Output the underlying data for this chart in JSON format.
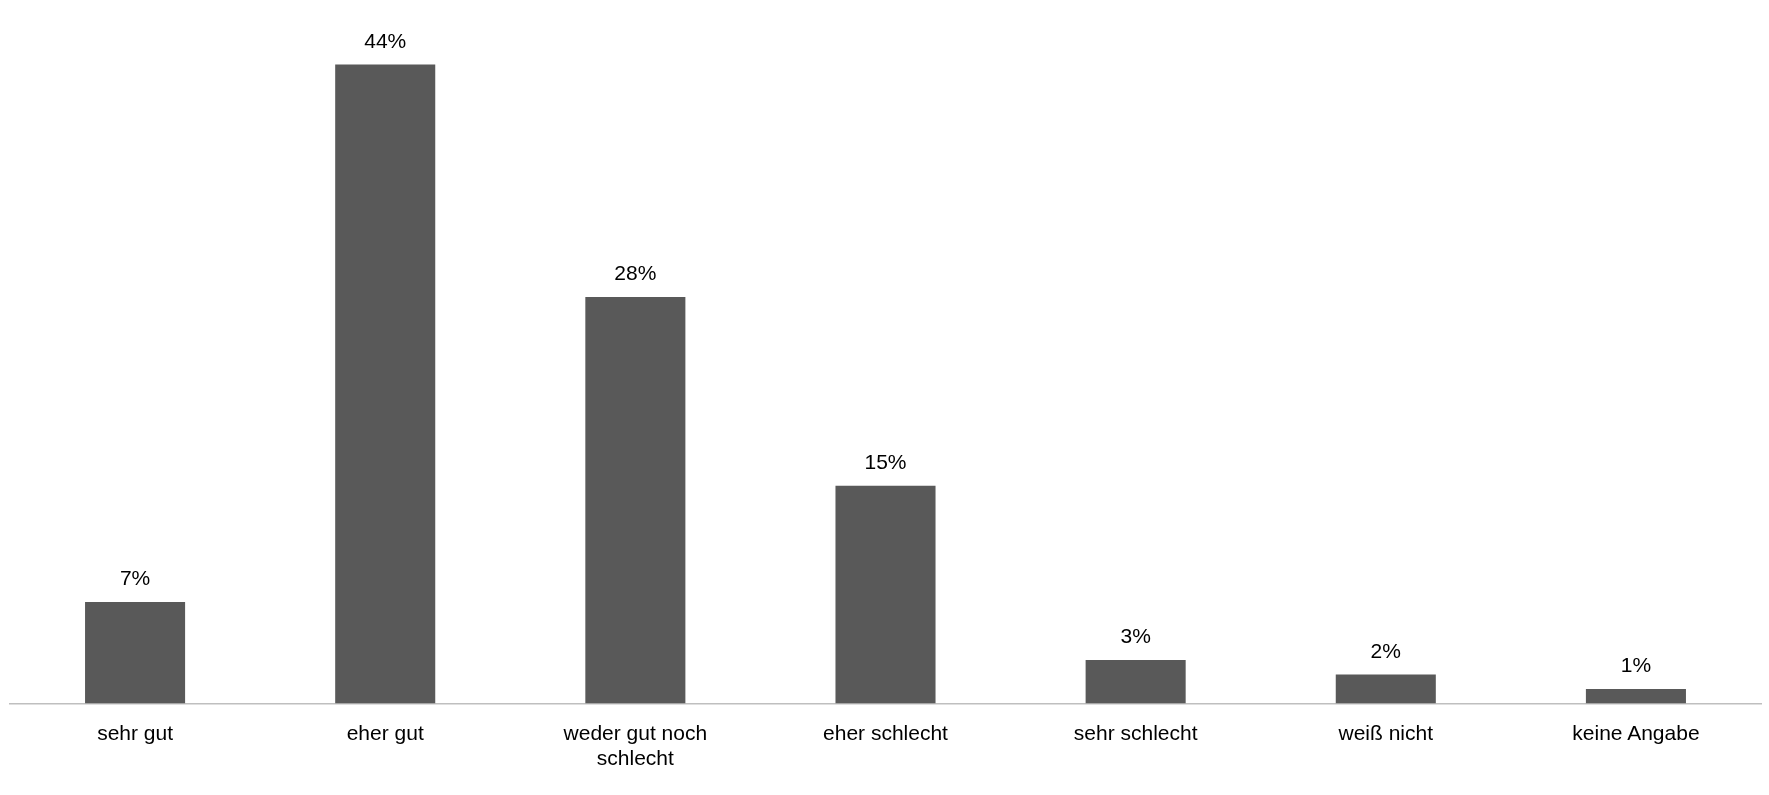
{
  "chart_data": {
    "type": "bar",
    "categories": [
      "sehr gut",
      "eher gut",
      "weder gut noch schlecht",
      "eher schlecht",
      "sehr schlecht",
      "weiß nicht",
      "keine Angabe"
    ],
    "values": [
      7,
      44,
      28,
      15,
      3,
      2,
      1
    ],
    "value_labels": [
      "7%",
      "44%",
      "28%",
      "15%",
      "3%",
      "2%",
      "1%"
    ],
    "color": "#595959",
    "grid": false,
    "legend": false
  }
}
